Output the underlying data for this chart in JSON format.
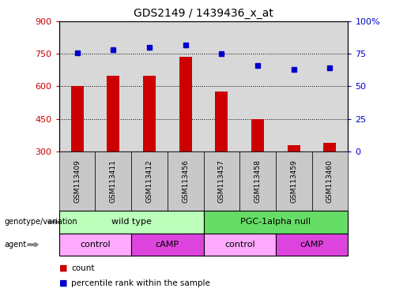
{
  "title": "GDS2149 / 1439436_x_at",
  "categories": [
    "GSM113409",
    "GSM113411",
    "GSM113412",
    "GSM113456",
    "GSM113457",
    "GSM113458",
    "GSM113459",
    "GSM113460"
  ],
  "bar_values": [
    600,
    650,
    650,
    735,
    575,
    450,
    330,
    340
  ],
  "dot_values": [
    76,
    78,
    80,
    82,
    75,
    66,
    63,
    64
  ],
  "bar_color": "#cc0000",
  "dot_color": "#0000cc",
  "ylim_left": [
    300,
    900
  ],
  "ylim_right": [
    0,
    100
  ],
  "yticks_left": [
    300,
    450,
    600,
    750,
    900
  ],
  "yticks_right": [
    0,
    25,
    50,
    75,
    100
  ],
  "yticklabels_right": [
    "0",
    "25",
    "50",
    "75",
    "100%"
  ],
  "genotype_groups": [
    {
      "label": "wild type",
      "span": [
        0,
        4
      ],
      "color": "#bbffbb"
    },
    {
      "label": "PGC-1alpha null",
      "span": [
        4,
        8
      ],
      "color": "#66dd66"
    }
  ],
  "agent_groups": [
    {
      "label": "control",
      "span": [
        0,
        2
      ],
      "color": "#ffaaff"
    },
    {
      "label": "cAMP",
      "span": [
        2,
        4
      ],
      "color": "#dd44dd"
    },
    {
      "label": "control",
      "span": [
        4,
        6
      ],
      "color": "#ffaaff"
    },
    {
      "label": "cAMP",
      "span": [
        6,
        8
      ],
      "color": "#dd44dd"
    }
  ],
  "legend_count_label": "count",
  "legend_percentile_label": "percentile rank within the sample",
  "genotype_label": "genotype/variation",
  "agent_label": "agent",
  "bg_color": "#d8d8d8",
  "tick_bg_color": "#c8c8c8"
}
